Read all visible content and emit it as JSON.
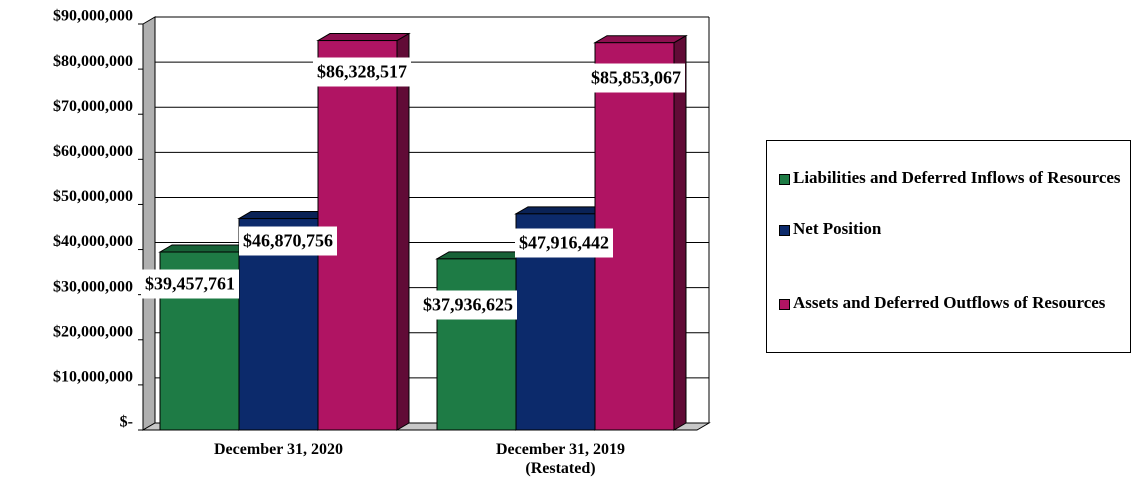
{
  "chart_data": {
    "type": "bar3d",
    "categories": [
      "December 31, 2020",
      "December 31, 2019 (Restated)"
    ],
    "series": [
      {
        "name": "Liabilities and Deferred Inflows of Resources",
        "color": "#1e7b45",
        "values": [
          39457761,
          37936625
        ],
        "value_labels": [
          "$39,457,761",
          "$37,936,625"
        ]
      },
      {
        "name": "Net Position",
        "color": "#0c2a6b",
        "values": [
          46870756,
          47916442
        ],
        "value_labels": [
          "$46,870,756",
          "$47,916,442"
        ]
      },
      {
        "name": "Assets and Deferred Outflows of Resources",
        "color": "#b01463",
        "values": [
          86328517,
          85853067
        ],
        "value_labels": [
          "$86,328,517",
          "$85,853,067"
        ]
      }
    ],
    "ylim": [
      0,
      90000000
    ],
    "yticks": [
      {
        "value": 0,
        "label": "$-"
      },
      {
        "value": 10000000,
        "label": "$10,000,000"
      },
      {
        "value": 20000000,
        "label": "$20,000,000"
      },
      {
        "value": 30000000,
        "label": "$30,000,000"
      },
      {
        "value": 40000000,
        "label": "$40,000,000"
      },
      {
        "value": 50000000,
        "label": "$50,000,000"
      },
      {
        "value": 60000000,
        "label": "$60,000,000"
      },
      {
        "value": 70000000,
        "label": "$70,000,000"
      },
      {
        "value": 80000000,
        "label": "$80,000,000"
      },
      {
        "value": 90000000,
        "label": "$90,000,000"
      }
    ],
    "grid": true,
    "legend": "right"
  }
}
